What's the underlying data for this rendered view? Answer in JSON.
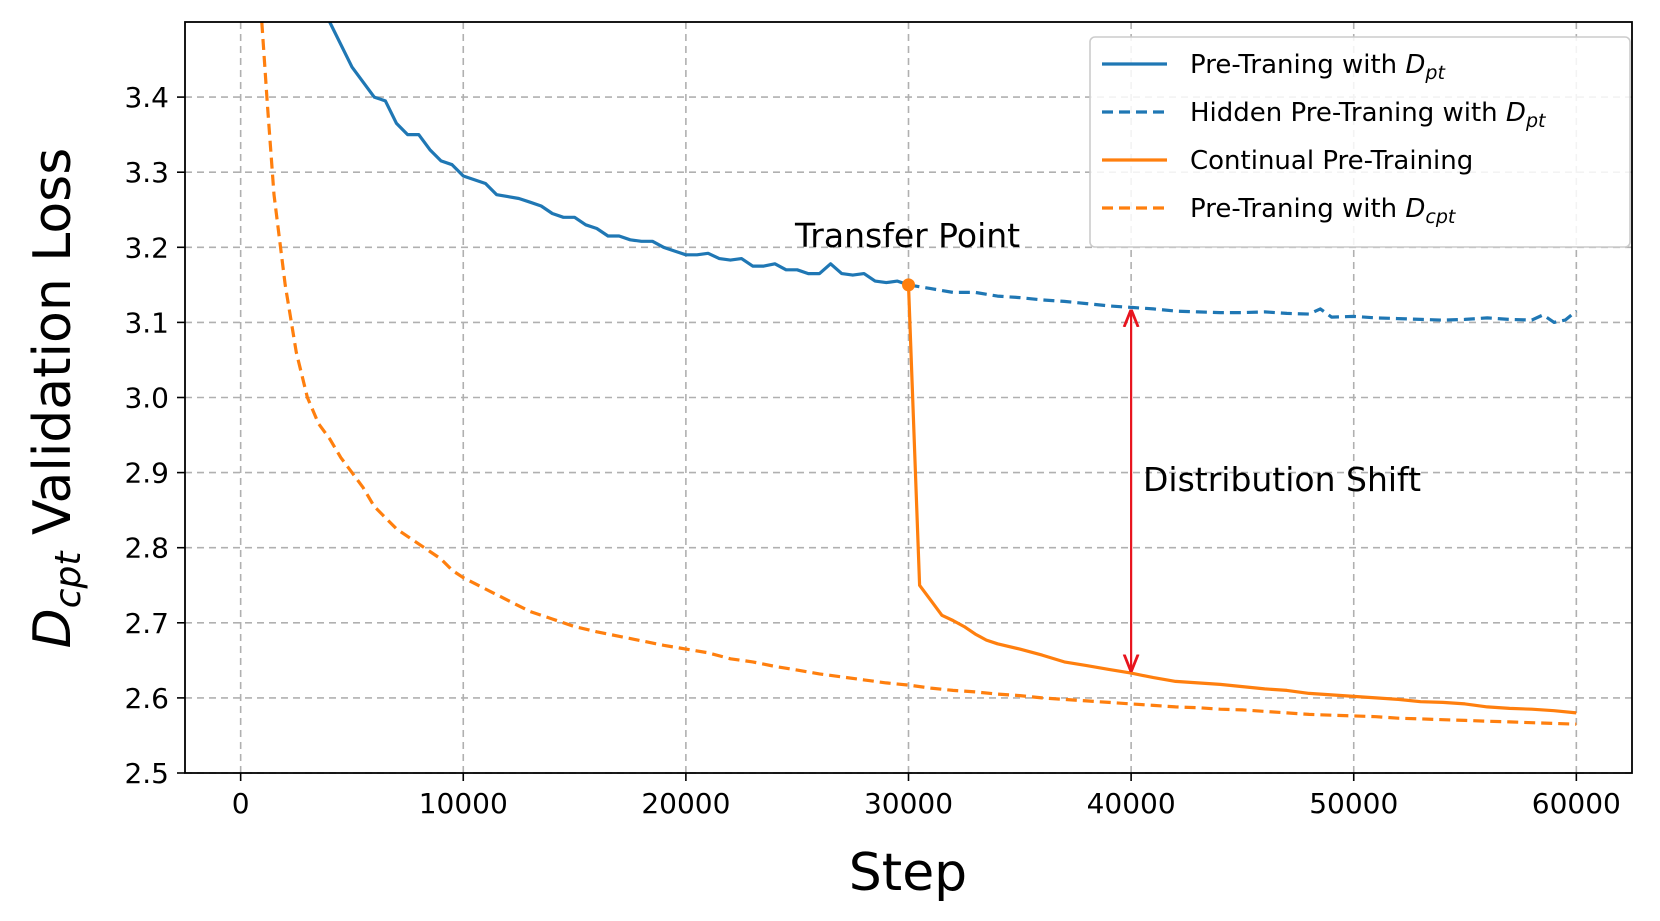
{
  "chart_data": {
    "type": "line",
    "xlabel": "Step",
    "ylabel": {
      "main": "D",
      "sub": "cpt",
      "rest": " Validation Loss"
    },
    "xlim": [
      -2500,
      62500
    ],
    "ylim": [
      2.5,
      3.5
    ],
    "xticks": [
      0,
      10000,
      20000,
      30000,
      40000,
      50000,
      60000
    ],
    "xtick_labels": [
      "0",
      "10000",
      "20000",
      "30000",
      "40000",
      "50000",
      "60000"
    ],
    "yticks": [
      2.5,
      2.6,
      2.7,
      2.8,
      2.9,
      3.0,
      3.1,
      3.2,
      3.3,
      3.4
    ],
    "ytick_labels": [
      "2.5",
      "2.6",
      "2.7",
      "2.8",
      "2.9",
      "3.0",
      "3.1",
      "3.2",
      "3.3",
      "3.4"
    ],
    "grid": true,
    "legend_position": "top-right",
    "series": [
      {
        "legend": {
          "prefix": "Pre-Traning with ",
          "math": "D",
          "sub": "pt"
        },
        "color": "#1f77b4",
        "style": "solid",
        "points": [
          [
            4000,
            3.5
          ],
          [
            5000,
            3.44
          ],
          [
            6000,
            3.4
          ],
          [
            6500,
            3.395
          ],
          [
            7000,
            3.365
          ],
          [
            7500,
            3.35
          ],
          [
            8000,
            3.35
          ],
          [
            8500,
            3.33
          ],
          [
            9000,
            3.315
          ],
          [
            9500,
            3.31
          ],
          [
            10000,
            3.295
          ],
          [
            11000,
            3.285
          ],
          [
            11500,
            3.27
          ],
          [
            12500,
            3.265
          ],
          [
            13000,
            3.26
          ],
          [
            13500,
            3.255
          ],
          [
            14000,
            3.245
          ],
          [
            14500,
            3.24
          ],
          [
            15000,
            3.24
          ],
          [
            15500,
            3.23
          ],
          [
            16000,
            3.225
          ],
          [
            16500,
            3.215
          ],
          [
            17000,
            3.215
          ],
          [
            17500,
            3.21
          ],
          [
            18000,
            3.208
          ],
          [
            18500,
            3.208
          ],
          [
            19000,
            3.2
          ],
          [
            19500,
            3.195
          ],
          [
            20000,
            3.19
          ],
          [
            20500,
            3.19
          ],
          [
            21000,
            3.192
          ],
          [
            21500,
            3.185
          ],
          [
            22000,
            3.183
          ],
          [
            22500,
            3.185
          ],
          [
            23000,
            3.175
          ],
          [
            23500,
            3.175
          ],
          [
            24000,
            3.178
          ],
          [
            24500,
            3.17
          ],
          [
            25000,
            3.17
          ],
          [
            25500,
            3.165
          ],
          [
            26000,
            3.165
          ],
          [
            26500,
            3.178
          ],
          [
            27000,
            3.165
          ],
          [
            27500,
            3.163
          ],
          [
            28000,
            3.165
          ],
          [
            28500,
            3.155
          ],
          [
            29000,
            3.153
          ],
          [
            29500,
            3.155
          ],
          [
            30000,
            3.15
          ]
        ]
      },
      {
        "legend": {
          "prefix": "Hidden Pre-Traning with ",
          "math": "D",
          "sub": "pt"
        },
        "color": "#1f77b4",
        "style": "dashed",
        "points": [
          [
            30000,
            3.15
          ],
          [
            31000,
            3.145
          ],
          [
            32000,
            3.14
          ],
          [
            33000,
            3.14
          ],
          [
            34000,
            3.135
          ],
          [
            35000,
            3.133
          ],
          [
            36000,
            3.13
          ],
          [
            37000,
            3.128
          ],
          [
            38000,
            3.125
          ],
          [
            39000,
            3.122
          ],
          [
            40000,
            3.12
          ],
          [
            41000,
            3.118
          ],
          [
            42000,
            3.115
          ],
          [
            43000,
            3.114
          ],
          [
            44000,
            3.113
          ],
          [
            45000,
            3.113
          ],
          [
            46000,
            3.114
          ],
          [
            47000,
            3.112
          ],
          [
            48000,
            3.111
          ],
          [
            48500,
            3.118
          ],
          [
            49000,
            3.107
          ],
          [
            50000,
            3.108
          ],
          [
            51000,
            3.106
          ],
          [
            52000,
            3.105
          ],
          [
            53000,
            3.104
          ],
          [
            54000,
            3.103
          ],
          [
            55000,
            3.104
          ],
          [
            56000,
            3.106
          ],
          [
            57000,
            3.104
          ],
          [
            58000,
            3.103
          ],
          [
            58500,
            3.11
          ],
          [
            59000,
            3.1
          ],
          [
            59500,
            3.103
          ],
          [
            60000,
            3.115
          ]
        ]
      },
      {
        "legend": {
          "prefix": "Continual Pre-Training",
          "math": "",
          "sub": ""
        },
        "color": "#ff7f0e",
        "style": "solid",
        "points": [
          [
            30000,
            3.15
          ],
          [
            30500,
            2.75
          ],
          [
            31000,
            2.73
          ],
          [
            31500,
            2.71
          ],
          [
            32000,
            2.703
          ],
          [
            32500,
            2.695
          ],
          [
            33000,
            2.685
          ],
          [
            33500,
            2.677
          ],
          [
            34000,
            2.672
          ],
          [
            35000,
            2.665
          ],
          [
            36000,
            2.657
          ],
          [
            37000,
            2.648
          ],
          [
            38000,
            2.643
          ],
          [
            39000,
            2.638
          ],
          [
            40000,
            2.633
          ],
          [
            41000,
            2.627
          ],
          [
            42000,
            2.622
          ],
          [
            43000,
            2.62
          ],
          [
            44000,
            2.618
          ],
          [
            45000,
            2.615
          ],
          [
            46000,
            2.612
          ],
          [
            47000,
            2.61
          ],
          [
            48000,
            2.606
          ],
          [
            49000,
            2.604
          ],
          [
            50000,
            2.602
          ],
          [
            51000,
            2.6
          ],
          [
            52000,
            2.598
          ],
          [
            53000,
            2.595
          ],
          [
            54000,
            2.594
          ],
          [
            55000,
            2.592
          ],
          [
            56000,
            2.588
          ],
          [
            57000,
            2.586
          ],
          [
            58000,
            2.585
          ],
          [
            59000,
            2.583
          ],
          [
            60000,
            2.58
          ]
        ]
      },
      {
        "legend": {
          "prefix": "Pre-Traning with ",
          "math": "D",
          "sub": "cpt"
        },
        "color": "#ff7f0e",
        "style": "dashed",
        "points": [
          [
            950,
            3.5
          ],
          [
            1200,
            3.39
          ],
          [
            1500,
            3.27
          ],
          [
            2000,
            3.15
          ],
          [
            2500,
            3.06
          ],
          [
            3000,
            3.0
          ],
          [
            3500,
            2.965
          ],
          [
            4000,
            2.945
          ],
          [
            4500,
            2.92
          ],
          [
            5000,
            2.9
          ],
          [
            5500,
            2.88
          ],
          [
            6000,
            2.855
          ],
          [
            6500,
            2.84
          ],
          [
            7000,
            2.825
          ],
          [
            7500,
            2.815
          ],
          [
            8000,
            2.805
          ],
          [
            8500,
            2.795
          ],
          [
            9000,
            2.785
          ],
          [
            9500,
            2.77
          ],
          [
            10000,
            2.76
          ],
          [
            11000,
            2.745
          ],
          [
            12000,
            2.73
          ],
          [
            13000,
            2.715
          ],
          [
            14000,
            2.705
          ],
          [
            15000,
            2.695
          ],
          [
            16000,
            2.688
          ],
          [
            17000,
            2.682
          ],
          [
            18000,
            2.676
          ],
          [
            19000,
            2.67
          ],
          [
            20000,
            2.665
          ],
          [
            21000,
            2.66
          ],
          [
            22000,
            2.652
          ],
          [
            23000,
            2.648
          ],
          [
            24000,
            2.642
          ],
          [
            25000,
            2.637
          ],
          [
            26000,
            2.632
          ],
          [
            27000,
            2.628
          ],
          [
            28000,
            2.624
          ],
          [
            29000,
            2.62
          ],
          [
            30000,
            2.617
          ],
          [
            31000,
            2.613
          ],
          [
            32000,
            2.61
          ],
          [
            33000,
            2.608
          ],
          [
            34000,
            2.605
          ],
          [
            35000,
            2.603
          ],
          [
            36000,
            2.6
          ],
          [
            37000,
            2.598
          ],
          [
            38000,
            2.596
          ],
          [
            39000,
            2.594
          ],
          [
            40000,
            2.592
          ],
          [
            41000,
            2.59
          ],
          [
            42000,
            2.588
          ],
          [
            43000,
            2.587
          ],
          [
            44000,
            2.585
          ],
          [
            45000,
            2.584
          ],
          [
            46000,
            2.582
          ],
          [
            47000,
            2.58
          ],
          [
            48000,
            2.578
          ],
          [
            49000,
            2.577
          ],
          [
            50000,
            2.576
          ],
          [
            51000,
            2.575
          ],
          [
            52000,
            2.573
          ],
          [
            53000,
            2.572
          ],
          [
            54000,
            2.571
          ],
          [
            55000,
            2.57
          ],
          [
            56000,
            2.569
          ],
          [
            57000,
            2.568
          ],
          [
            58000,
            2.567
          ],
          [
            59000,
            2.566
          ],
          [
            60000,
            2.565
          ]
        ]
      }
    ],
    "annotations": {
      "transfer_point": {
        "text": "Transfer Point",
        "x": 30000,
        "y": 3.15,
        "color": "#ff7f0e"
      },
      "distribution_shift": {
        "text": "Distribution Shift",
        "x": 40000,
        "y_from": 3.115,
        "y_to": 2.637,
        "color": "#e8141e"
      }
    }
  }
}
